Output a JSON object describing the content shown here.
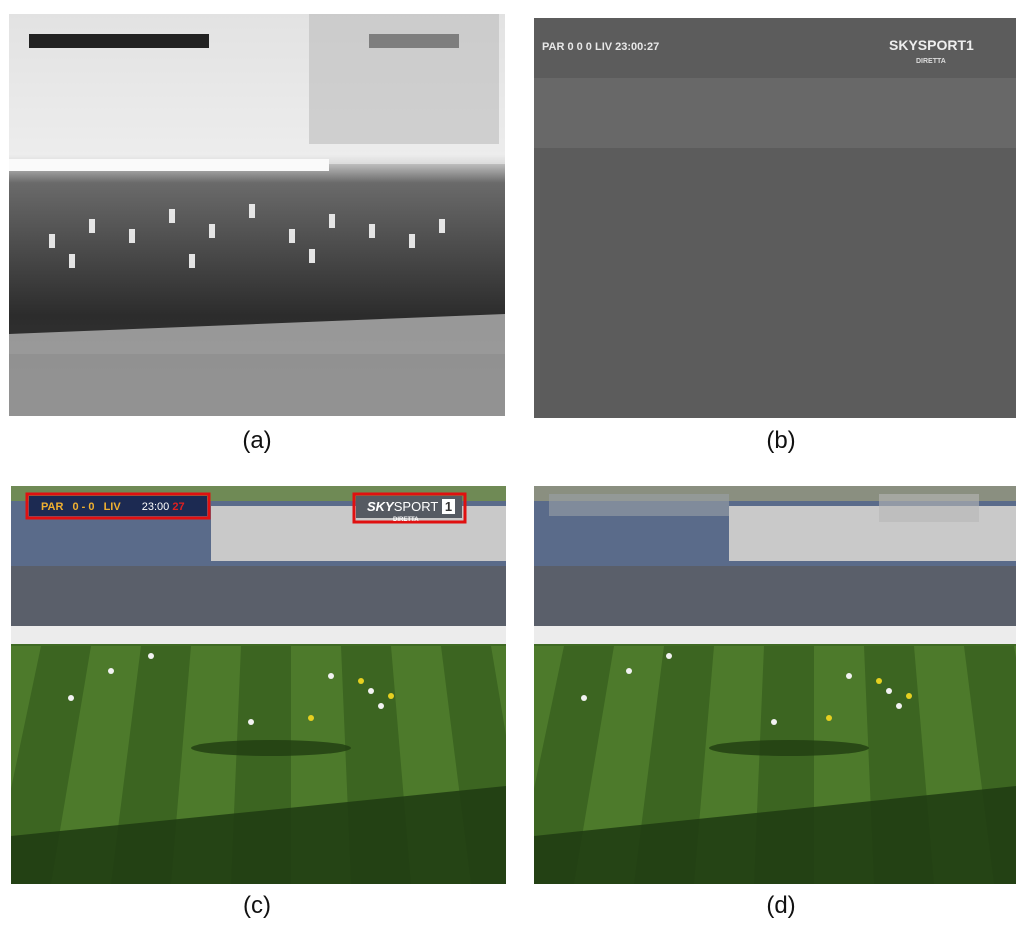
{
  "captions": {
    "a": "(a)",
    "b": "(b)",
    "c": "(c)",
    "d": "(d)"
  },
  "scoreboard": {
    "home": "PAR",
    "score": "0 - 0",
    "away": "LIV",
    "time": "23:00",
    "extra": "27"
  },
  "broadcaster": {
    "sky": "SKY",
    "sport": "SPORT",
    "channel": "1",
    "sub": "DIRETTA"
  },
  "panel_b_text": {
    "left": "PAR 0 0 0 LIV 23:00:27",
    "right": "SKYSPORT1",
    "sub": "DIRETTA"
  },
  "colors": {
    "highlight_box": "#e01010",
    "grass_light": "#4f7a2a",
    "grass_dark": "#3a5e1c"
  }
}
